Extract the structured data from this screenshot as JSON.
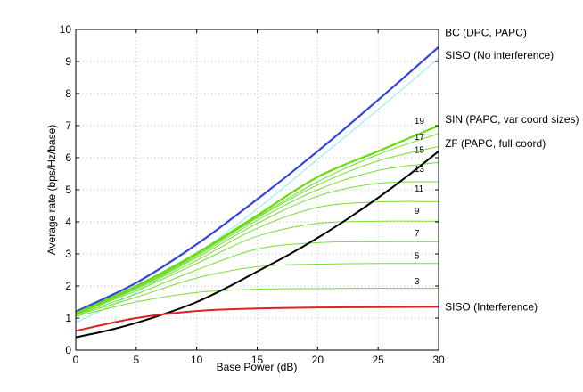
{
  "chart_data": {
    "type": "line",
    "title": "",
    "xlabel": "Base Power (dB)",
    "ylabel": "Average rate (bps/Hz/base)",
    "xlim": [
      0,
      30
    ],
    "ylim": [
      0,
      10
    ],
    "xticks": [
      0,
      5,
      10,
      15,
      20,
      25,
      30
    ],
    "yticks": [
      0,
      1,
      2,
      3,
      4,
      5,
      6,
      7,
      8,
      9,
      10
    ],
    "grid": true,
    "series": [
      {
        "key": "bc",
        "color": "#3344dd",
        "width": 2.2,
        "x": [
          0,
          5,
          10,
          15,
          20,
          25,
          30
        ],
        "y": [
          1.2,
          2.1,
          3.3,
          4.7,
          6.2,
          7.8,
          9.45
        ]
      },
      {
        "key": "siso_noint",
        "color": "#88eeee",
        "width": 1,
        "x": [
          0,
          5,
          10,
          15,
          20,
          25,
          30
        ],
        "y": [
          0.85,
          1.8,
          3.0,
          4.4,
          5.95,
          7.5,
          9.1
        ]
      },
      {
        "key": "zf",
        "color": "#000000",
        "width": 2,
        "x": [
          0,
          2.5,
          5,
          7.5,
          10,
          12.5,
          15,
          17.5,
          20,
          22.5,
          25,
          27.5,
          30
        ],
        "y": [
          0.4,
          0.6,
          0.85,
          1.15,
          1.5,
          1.95,
          2.45,
          2.95,
          3.5,
          4.1,
          4.75,
          5.45,
          6.2
        ]
      },
      {
        "key": "siso_int",
        "color": "#dd2222",
        "width": 2,
        "x": [
          0,
          5,
          10,
          15,
          20,
          25,
          30
        ],
        "y": [
          0.6,
          1.0,
          1.22,
          1.3,
          1.33,
          1.34,
          1.35
        ]
      },
      {
        "key": "sin_3",
        "color": "#77dd33",
        "width": 1,
        "x": [
          0,
          5,
          10,
          15,
          20,
          25,
          30
        ],
        "y": [
          1.05,
          1.5,
          1.8,
          1.9,
          1.92,
          1.93,
          1.93
        ]
      },
      {
        "key": "sin_5",
        "color": "#77dd33",
        "width": 1,
        "x": [
          0,
          5,
          10,
          15,
          20,
          25,
          30
        ],
        "y": [
          1.08,
          1.65,
          2.25,
          2.6,
          2.68,
          2.7,
          2.7
        ]
      },
      {
        "key": "sin_7",
        "color": "#77dd33",
        "width": 1,
        "x": [
          0,
          5,
          10,
          15,
          20,
          25,
          30
        ],
        "y": [
          1.1,
          1.75,
          2.5,
          3.15,
          3.35,
          3.38,
          3.38
        ]
      },
      {
        "key": "sin_9",
        "color": "#77dd33",
        "width": 1,
        "x": [
          0,
          5,
          10,
          15,
          20,
          25,
          30
        ],
        "y": [
          1.12,
          1.85,
          2.7,
          3.55,
          3.95,
          4.02,
          4.02
        ]
      },
      {
        "key": "sin_11",
        "color": "#77dd33",
        "width": 1,
        "x": [
          0,
          5,
          10,
          15,
          20,
          25,
          30
        ],
        "y": [
          1.13,
          1.9,
          2.8,
          3.8,
          4.45,
          4.62,
          4.63
        ]
      },
      {
        "key": "sin_13",
        "color": "#77dd33",
        "width": 1,
        "x": [
          0,
          5,
          10,
          15,
          20,
          25,
          30
        ],
        "y": [
          1.14,
          1.93,
          2.88,
          3.95,
          4.8,
          5.2,
          5.25
        ]
      },
      {
        "key": "sin_15",
        "color": "#77dd33",
        "width": 1,
        "x": [
          0,
          5,
          10,
          15,
          20,
          25,
          30
        ],
        "y": [
          1.15,
          1.95,
          2.93,
          4.05,
          5.0,
          5.6,
          5.85
        ]
      },
      {
        "key": "sin_17",
        "color": "#77dd33",
        "width": 1,
        "x": [
          0,
          5,
          10,
          15,
          20,
          25,
          30
        ],
        "y": [
          1.15,
          1.96,
          2.97,
          4.12,
          5.15,
          5.9,
          6.35
        ]
      },
      {
        "key": "sin_19",
        "color": "#77dd33",
        "width": 1,
        "x": [
          0,
          5,
          10,
          15,
          20,
          25,
          30
        ],
        "y": [
          1.16,
          1.98,
          3.0,
          4.15,
          5.25,
          6.1,
          6.75
        ]
      },
      {
        "key": "sin_full",
        "color": "#66dd11",
        "width": 2.2,
        "x": [
          0,
          5,
          10,
          15,
          20,
          25,
          30
        ],
        "y": [
          1.15,
          2.0,
          3.02,
          4.2,
          5.4,
          6.2,
          7.0
        ]
      }
    ],
    "annotations": [
      {
        "key": "bc",
        "text": "BC (DPC, PAPC)",
        "x": 30.3,
        "y": 9.9
      },
      {
        "key": "siso_noint",
        "text": "SISO (No interference)",
        "x": 30.3,
        "y": 9.2
      },
      {
        "key": "sin",
        "text": "SIN (PAPC, var coord sizes)",
        "x": 30.3,
        "y": 7.2
      },
      {
        "key": "zf",
        "text": "ZF (PAPC, full coord)",
        "x": 30.3,
        "y": 6.45
      },
      {
        "key": "siso_int",
        "text": "SISO (Interference)",
        "x": 30.3,
        "y": 1.35
      }
    ],
    "size_labels": [
      {
        "text": "19",
        "x": 28.0,
        "y": 7.05
      },
      {
        "text": "17",
        "x": 28.0,
        "y": 6.55
      },
      {
        "text": "15",
        "x": 28.0,
        "y": 6.15
      },
      {
        "text": "13",
        "x": 28.0,
        "y": 5.55
      },
      {
        "text": "11",
        "x": 28.0,
        "y": 4.95
      },
      {
        "text": "9",
        "x": 28.0,
        "y": 4.25
      },
      {
        "text": "7",
        "x": 28.0,
        "y": 3.55
      },
      {
        "text": "5",
        "x": 28.0,
        "y": 2.85
      },
      {
        "text": "3",
        "x": 28.0,
        "y": 2.05
      }
    ]
  }
}
